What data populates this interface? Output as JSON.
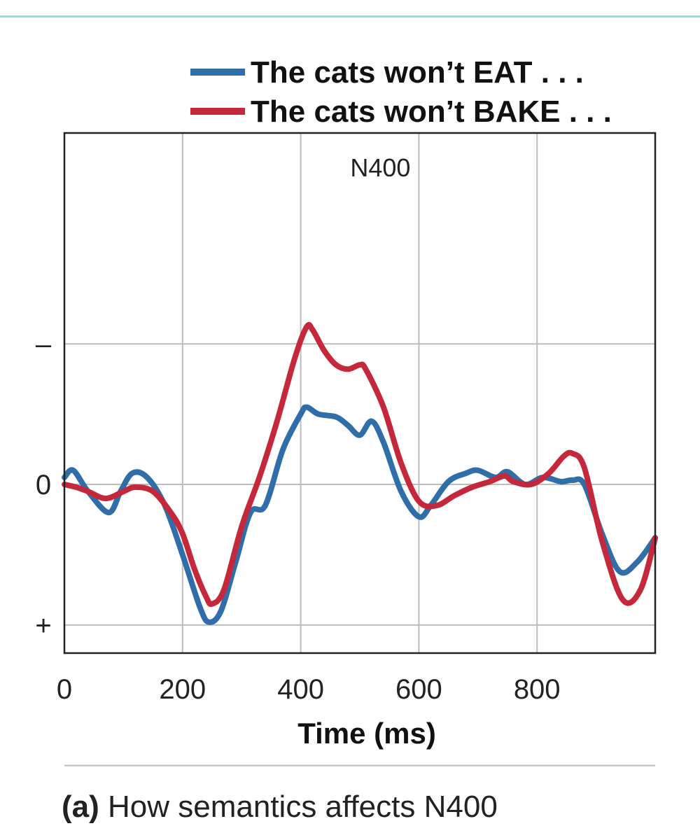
{
  "caption": {
    "label": "(a)",
    "text": "How semantics affects N400"
  },
  "chart_data": {
    "type": "line",
    "xlabel": "Time (ms)",
    "ylabel": "",
    "xlim": [
      0,
      1000
    ],
    "ylim": [
      -1.2,
      2.5
    ],
    "y_inverted": true,
    "grid": true,
    "legend_position": "top",
    "x_ticks": [
      0,
      200,
      400,
      600,
      800
    ],
    "x_tick_labels": [
      "0",
      "200",
      "400",
      "600",
      "800"
    ],
    "y_ticks": [
      1,
      0,
      -1
    ],
    "y_tick_labels": [
      "–",
      "0",
      "+"
    ],
    "annotations": [
      {
        "text": "N400",
        "x": 440,
        "y": 1.2
      }
    ],
    "series": [
      {
        "name": "The cats won’t EAT . . .",
        "color": "#2f6ea8",
        "x": [
          0,
          15,
          40,
          75,
          95,
          115,
          140,
          170,
          200,
          230,
          245,
          265,
          290,
          315,
          340,
          370,
          400,
          410,
          430,
          460,
          480,
          500,
          520,
          540,
          570,
          600,
          620,
          650,
          680,
          700,
          730,
          750,
          780,
          810,
          840,
          860,
          880,
          910,
          940,
          970,
          1000
        ],
        "y": [
          0.05,
          0.1,
          -0.05,
          -0.2,
          -0.05,
          0.08,
          0.05,
          -0.15,
          -0.5,
          -0.88,
          -0.98,
          -0.9,
          -0.55,
          -0.2,
          -0.15,
          0.25,
          0.5,
          0.55,
          0.5,
          0.48,
          0.42,
          0.35,
          0.45,
          0.3,
          -0.05,
          -0.23,
          -0.15,
          0.02,
          0.08,
          0.1,
          0.05,
          0.09,
          0.0,
          0.05,
          0.02,
          0.03,
          0.0,
          -0.35,
          -0.62,
          -0.55,
          -0.38
        ]
      },
      {
        "name": "The cats won’t BAKE . . .",
        "color": "#c4283a",
        "x": [
          0,
          20,
          40,
          70,
          100,
          120,
          150,
          180,
          200,
          220,
          240,
          250,
          270,
          300,
          330,
          360,
          390,
          410,
          420,
          440,
          460,
          480,
          500,
          510,
          540,
          570,
          600,
          630,
          660,
          690,
          720,
          745,
          760,
          790,
          820,
          845,
          860,
          880,
          910,
          945,
          975,
          1000
        ],
        "y": [
          0.0,
          -0.02,
          -0.05,
          -0.1,
          -0.05,
          -0.02,
          -0.05,
          -0.2,
          -0.35,
          -0.6,
          -0.8,
          -0.85,
          -0.75,
          -0.3,
          0.05,
          0.45,
          0.9,
          1.12,
          1.1,
          0.95,
          0.85,
          0.82,
          0.85,
          0.82,
          0.55,
          0.15,
          -0.12,
          -0.15,
          -0.08,
          -0.02,
          0.02,
          0.06,
          0.02,
          0.0,
          0.08,
          0.2,
          0.22,
          0.12,
          -0.4,
          -0.82,
          -0.75,
          -0.38
        ]
      }
    ]
  }
}
